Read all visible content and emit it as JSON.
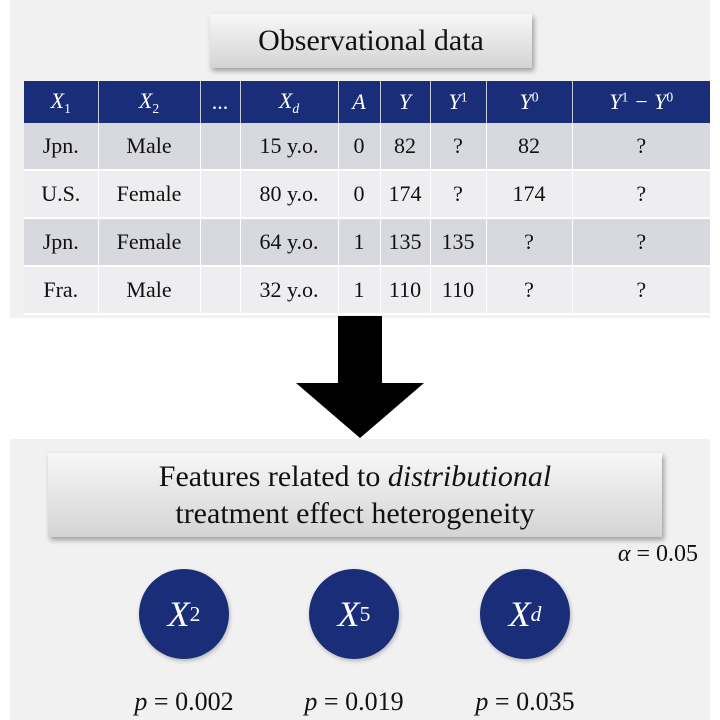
{
  "top": {
    "title": "Observational data",
    "table": {
      "headers": [
        {
          "main": "X",
          "sub": "1",
          "sup": ""
        },
        {
          "main": "X",
          "sub": "2",
          "sup": ""
        },
        {
          "main": "...",
          "sub": "",
          "sup": ""
        },
        {
          "main": "X",
          "sub": "d",
          "sup": ""
        },
        {
          "main": "A",
          "sub": "",
          "sup": ""
        },
        {
          "main": "Y",
          "sub": "",
          "sup": ""
        },
        {
          "main": "Y",
          "sub": "",
          "sup": "1"
        },
        {
          "main": "Y",
          "sub": "",
          "sup": "0"
        },
        {
          "main": "Y",
          "sub": "",
          "sup": "1",
          "tail": " − Y",
          "tail_sup": "0"
        }
      ],
      "rows": [
        [
          "Jpn.",
          "Male",
          "",
          "15 y.o.",
          "0",
          "82",
          "?",
          "82",
          "?"
        ],
        [
          "U.S.",
          "Female",
          "",
          "80 y.o.",
          "0",
          "174",
          "?",
          "174",
          "?"
        ],
        [
          "Jpn.",
          "Female",
          "",
          "64 y.o.",
          "1",
          "135",
          "135",
          "?",
          "?"
        ],
        [
          "Fra.",
          "Male",
          "",
          "32 y.o.",
          "1",
          "110",
          "110",
          "?",
          "?"
        ]
      ]
    }
  },
  "bottom": {
    "heading_line1_plain": "Features related to ",
    "heading_line1_italic": "distributional",
    "heading_line2": "treatment effect heterogeneity",
    "alpha_symbol": "α",
    "alpha_text": " = 0.05",
    "features": [
      {
        "main": "X",
        "sub": "2",
        "p_symbol": "p",
        "p_text": " = 0.002"
      },
      {
        "main": "X",
        "sub": "5",
        "p_symbol": "p",
        "p_text": " = 0.019"
      },
      {
        "main": "X",
        "sub": "d",
        "p_symbol": "p",
        "p_text": " = 0.035"
      }
    ]
  },
  "colors": {
    "header_navy": "#1a2d78",
    "row_dark": "#d8d9de",
    "row_light": "#eeeef1",
    "panel_bg": "#f1f1f1",
    "arrow": "#000000"
  }
}
